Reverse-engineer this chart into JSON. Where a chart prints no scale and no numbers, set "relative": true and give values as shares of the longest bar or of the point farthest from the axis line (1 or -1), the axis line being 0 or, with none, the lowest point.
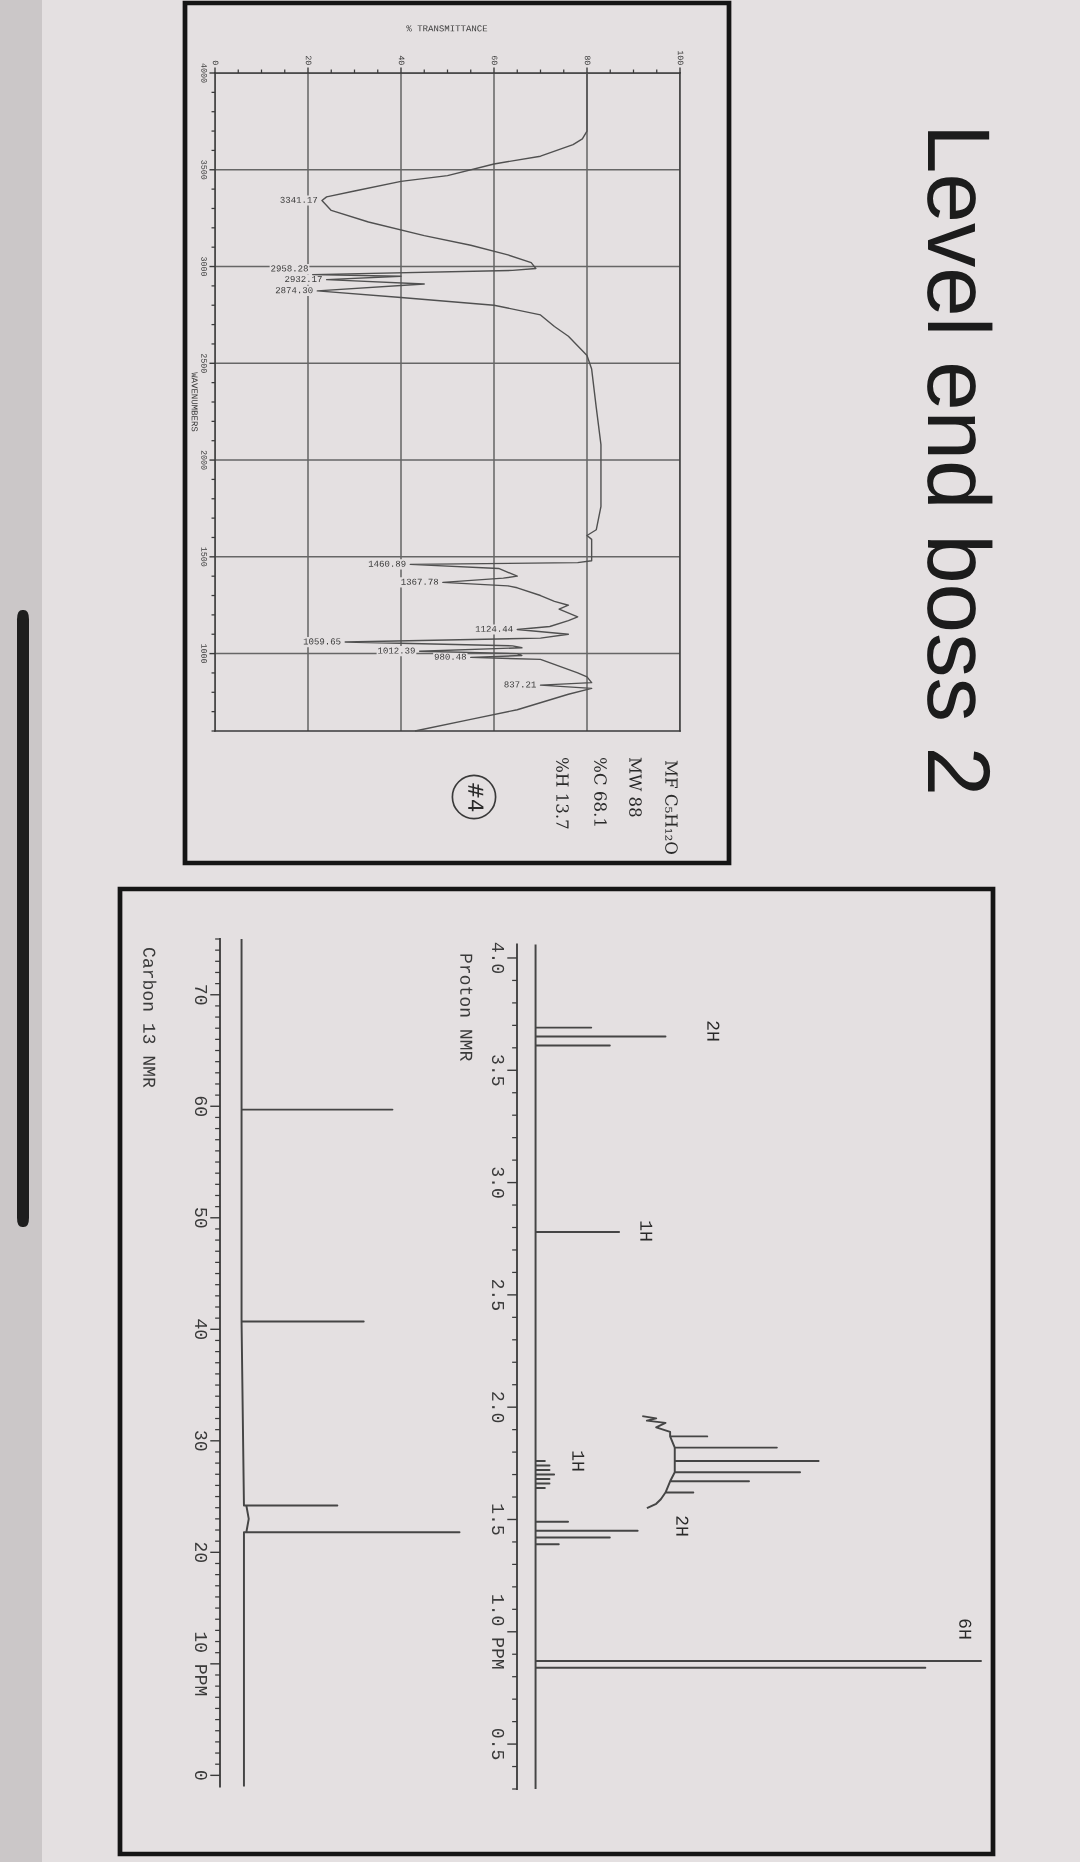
{
  "chart_data": [
    {
      "type": "line",
      "orientation": "horizontal",
      "xlabel": "% TRANSMITTANCE",
      "ylabel": "WAVENUMBERS",
      "xlim": [
        0,
        100
      ],
      "xticks": [
        0,
        {
          "value": 5,
          "label": null
        },
        {
          "value": 10,
          "label": null
        },
        {
          "value": 15,
          "label": null
        },
        20,
        {
          "value": 25,
          "label": null
        },
        {
          "value": 30,
          "label": null
        },
        {
          "value": 35,
          "label": null
        },
        40,
        {
          "value": 45,
          "label": null
        },
        {
          "value": 50,
          "label": null
        },
        {
          "value": 55,
          "label": null
        },
        60,
        {
          "value": 65,
          "label": null
        },
        {
          "value": 70,
          "label": null
        },
        {
          "value": 75,
          "label": null
        },
        80,
        {
          "value": 85,
          "label": null
        },
        {
          "value": 90,
          "label": null
        },
        {
          "value": 95,
          "label": null
        },
        100
      ],
      "ylim": [
        600,
        4000
      ],
      "yticks": [
        4000,
        {
          "value": 3900,
          "label": null
        },
        {
          "value": 3800,
          "label": null
        },
        {
          "value": 3700,
          "label": null
        },
        {
          "value": 3600,
          "label": null
        },
        3500,
        {
          "value": 3400,
          "label": null
        },
        {
          "value": 3300,
          "label": null
        },
        {
          "value": 3200,
          "label": null
        },
        {
          "value": 3100,
          "label": null
        },
        3000,
        {
          "value": 2900,
          "label": null
        },
        {
          "value": 2800,
          "label": null
        },
        {
          "value": 2700,
          "label": null
        },
        {
          "value": 2600,
          "label": null
        },
        2500,
        {
          "value": 2400,
          "label": null
        },
        {
          "value": 2300,
          "label": null
        },
        {
          "value": 2200,
          "label": null
        },
        {
          "value": 2100,
          "label": null
        },
        2000,
        {
          "value": 1900,
          "label": null
        },
        {
          "value": 1800,
          "label": null
        },
        {
          "value": 1700,
          "label": null
        },
        {
          "value": 1600,
          "label": null
        },
        1500,
        {
          "value": 1400,
          "label": null
        },
        {
          "value": 1300,
          "label": null
        },
        {
          "value": 1200,
          "label": null
        },
        {
          "value": 1100,
          "label": null
        },
        1000,
        {
          "value": 900,
          "label": null
        },
        {
          "value": 800,
          "label": null
        },
        {
          "value": 700,
          "label": null
        },
        {
          "value": 600,
          "label": null
        }
      ],
      "grid": true,
      "series": [
        {
          "color": "#505050",
          "x": [
            4000,
            3800,
            3700,
            3660,
            3630,
            3570,
            3530,
            3470,
            3440,
            3390,
            3360,
            3341.17,
            3290,
            3230,
            3160,
            3110,
            3060,
            3020,
            2990,
            2980,
            2958.28,
            2950,
            2932.17,
            2910,
            2874.3,
            2840,
            2800,
            2750,
            2690,
            2640,
            2540,
            2470,
            2270,
            2080,
            1910,
            1760,
            1640,
            1610,
            1590,
            1560,
            1480,
            1470,
            1460.89,
            1440,
            1400,
            1390,
            1367.78,
            1350,
            1340,
            1300,
            1270,
            1250,
            1230,
            1190,
            1170,
            1140,
            1124.44,
            1100,
            1080,
            1059.65,
            1040,
            1030,
            1012.39,
            1000,
            990,
            980.48,
            970,
            900,
            880,
            850,
            837.21,
            820,
            790,
            710,
            660,
            600
          ],
          "values": [
            80,
            80,
            80,
            79,
            77,
            70,
            60,
            50,
            40,
            30,
            24,
            23,
            25,
            33,
            45,
            55,
            63,
            68,
            69,
            64,
            21,
            40,
            24,
            45,
            22,
            40,
            60,
            70,
            73,
            76,
            80,
            81,
            82,
            83,
            83,
            83,
            82,
            80,
            81,
            81,
            81,
            78,
            42,
            61,
            65,
            62,
            49,
            63,
            65,
            70,
            73,
            76,
            74,
            78,
            76,
            72,
            65,
            76,
            70,
            28,
            64,
            66,
            44,
            65,
            66,
            55,
            70,
            78,
            80,
            81,
            70,
            81,
            76,
            65,
            55,
            43
          ]
        }
      ],
      "annotations": [
        {
          "text": "3341.17",
          "x": 23,
          "y": 3341.17
        },
        {
          "text": "2958.28",
          "x": 21,
          "y": 2958.28
        },
        {
          "text": "2932.17",
          "x": 24,
          "y": 2932.17
        },
        {
          "text": "2874.30",
          "x": 22,
          "y": 2874.3
        },
        {
          "text": "1460.89",
          "x": 42,
          "y": 1460.89
        },
        {
          "text": "1367.78",
          "x": 49,
          "y": 1367.78
        },
        {
          "text": "1124.44",
          "x": 65,
          "y": 1124.44
        },
        {
          "text": "1059.65",
          "x": 28,
          "y": 1059.65
        },
        {
          "text": "1012.39",
          "x": 44,
          "y": 1012.39
        },
        {
          "text": "980.48",
          "x": 55,
          "y": 980.48
        },
        {
          "text": "837.21",
          "x": 70,
          "y": 837.21
        },
        "MF C₅H₁₂O",
        "MW 88",
        "%C 68.1",
        "%H 13.7",
        "#4"
      ]
    },
    {
      "type": "line",
      "orientation": "horizontal",
      "title": "Level end boss 2",
      "ylabel": "Proton NMR",
      "ylim": [
        0.3,
        4.06
      ],
      "yticks": [
        {
          "value": 4,
          "label": "4.0"
        },
        {
          "value": 3.9,
          "label": null
        },
        {
          "value": 3.8,
          "label": null
        },
        {
          "value": 3.7,
          "label": null
        },
        {
          "value": 3.6,
          "label": null
        },
        3.5,
        {
          "value": 3.4,
          "label": null
        },
        {
          "value": 3.3,
          "label": null
        },
        {
          "value": 3.2,
          "label": null
        },
        {
          "value": 3.1,
          "label": null
        },
        {
          "value": 3,
          "label": "3.0"
        },
        {
          "value": 2.9,
          "label": null
        },
        {
          "value": 2.8,
          "label": null
        },
        {
          "value": 2.7,
          "label": null
        },
        {
          "value": 2.6,
          "label": null
        },
        2.5,
        {
          "value": 2.4,
          "label": null
        },
        {
          "value": 2.3,
          "label": null
        },
        {
          "value": 2.2,
          "label": null
        },
        {
          "value": 2.1,
          "label": null
        },
        {
          "value": 2,
          "label": "2.0"
        },
        {
          "value": 1.9,
          "label": null
        },
        {
          "value": 1.8,
          "label": null
        },
        {
          "value": 1.7,
          "label": null
        },
        {
          "value": 1.6,
          "label": null
        },
        1.5,
        {
          "value": 1.4,
          "label": null
        },
        {
          "value": 1.3,
          "label": null
        },
        {
          "value": 1.2,
          "label": null
        },
        {
          "value": 1.1,
          "label": null
        },
        {
          "value": 1,
          "label": "1.0 PPM"
        },
        {
          "value": 0.9,
          "label": null
        },
        {
          "value": 0.8,
          "label": null
        },
        {
          "value": 0.7,
          "label": null
        },
        {
          "value": 0.6,
          "label": null
        },
        0.5,
        {
          "value": 0.4,
          "label": null
        },
        {
          "value": 0.3,
          "label": null
        }
      ],
      "relative": true,
      "series": [
        {
          "color": "#454545",
          "x": [
            4.06,
            3.69,
            3.69,
            3.69,
            3.65,
            3.65,
            3.65,
            3.61,
            3.61,
            3.61,
            2.78,
            2.78,
            2.78,
            1.76,
            1.76,
            1.76,
            1.74,
            1.74,
            1.74,
            1.72,
            1.72,
            1.72,
            1.7,
            1.7,
            1.7,
            1.68,
            1.68,
            1.68,
            1.66,
            1.66,
            1.66,
            1.64,
            1.64,
            1.64,
            1.49,
            1.49,
            1.49,
            1.45,
            1.45,
            1.45,
            1.42,
            1.42,
            1.42,
            1.39,
            1.39,
            1.39,
            0.87,
            0.87,
            0.87,
            0.84,
            0.84,
            0.84,
            0.3
          ],
          "values": [
            0.04,
            0.04,
            0.16,
            0.04,
            0.04,
            0.32,
            0.04,
            0.04,
            0.2,
            0.04,
            0.04,
            0.22,
            0.04,
            0.04,
            0.06,
            0.04,
            0.04,
            0.07,
            0.04,
            0.04,
            0.07,
            0.04,
            0.04,
            0.08,
            0.04,
            0.04,
            0.07,
            0.04,
            0.04,
            0.07,
            0.04,
            0.04,
            0.06,
            0.04,
            0.04,
            0.11,
            0.04,
            0.04,
            0.26,
            0.04,
            0.04,
            0.2,
            0.04,
            0.04,
            0.09,
            0.04,
            0.04,
            1,
            0.04,
            0.04,
            0.88,
            0.04,
            0.04
          ]
        },
        {
          "color": "#454545",
          "x": [
            1.96,
            1.95,
            1.94,
            1.93,
            1.91,
            1.89,
            1.87,
            1.87,
            1.87,
            1.82,
            1.82,
            1.82,
            1.76,
            1.76,
            1.76,
            1.71,
            1.71,
            1.71,
            1.67,
            1.67,
            1.67,
            1.62,
            1.62,
            1.62,
            1.59,
            1.57,
            1.55
          ],
          "values": [
            0.27,
            0.3,
            0.28,
            0.32,
            0.3,
            0.33,
            0.33,
            0.41,
            0.33,
            0.34,
            0.56,
            0.34,
            0.34,
            0.65,
            0.34,
            0.34,
            0.61,
            0.34,
            0.33,
            0.5,
            0.33,
            0.32,
            0.38,
            0.32,
            0.31,
            0.3,
            0.28
          ]
        }
      ],
      "annotations": [
        "2H",
        "1H",
        "1H",
        "2H",
        "6H"
      ]
    },
    {
      "type": "line",
      "orientation": "horizontal",
      "ylabel": "Carbon 13 NMR",
      "ylim": [
        -1,
        75
      ],
      "yticks": [
        {
          "value": 75,
          "label": null
        },
        {
          "value": 74,
          "label": null
        },
        {
          "value": 73,
          "label": null
        },
        {
          "value": 72,
          "label": null
        },
        {
          "value": 71,
          "label": null
        },
        70,
        {
          "value": 69,
          "label": null
        },
        {
          "value": 68,
          "label": null
        },
        {
          "value": 67,
          "label": null
        },
        {
          "value": 66,
          "label": null
        },
        {
          "value": 65,
          "label": null
        },
        {
          "value": 64,
          "label": null
        },
        {
          "value": 63,
          "label": null
        },
        {
          "value": 62,
          "label": null
        },
        {
          "value": 61,
          "label": null
        },
        60,
        {
          "value": 59,
          "label": null
        },
        {
          "value": 58,
          "label": null
        },
        {
          "value": 57,
          "label": null
        },
        {
          "value": 56,
          "label": null
        },
        {
          "value": 55,
          "label": null
        },
        {
          "value": 54,
          "label": null
        },
        {
          "value": 53,
          "label": null
        },
        {
          "value": 52,
          "label": null
        },
        {
          "value": 51,
          "label": null
        },
        50,
        {
          "value": 49,
          "label": null
        },
        {
          "value": 48,
          "label": null
        },
        {
          "value": 47,
          "label": null
        },
        {
          "value": 46,
          "label": null
        },
        {
          "value": 45,
          "label": null
        },
        {
          "value": 44,
          "label": null
        },
        {
          "value": 43,
          "label": null
        },
        {
          "value": 42,
          "label": null
        },
        {
          "value": 41,
          "label": null
        },
        40,
        {
          "value": 39,
          "label": null
        },
        {
          "value": 38,
          "label": null
        },
        {
          "value": 37,
          "label": null
        },
        {
          "value": 36,
          "label": null
        },
        {
          "value": 35,
          "label": null
        },
        {
          "value": 34,
          "label": null
        },
        {
          "value": 33,
          "label": null
        },
        {
          "value": 32,
          "label": null
        },
        {
          "value": 31,
          "label": null
        },
        30,
        {
          "value": 29,
          "label": null
        },
        {
          "value": 28,
          "label": null
        },
        {
          "value": 27,
          "label": null
        },
        {
          "value": 26,
          "label": null
        },
        {
          "value": 25,
          "label": null
        },
        {
          "value": 24,
          "label": null
        },
        {
          "value": 23,
          "label": null
        },
        {
          "value": 22,
          "label": null
        },
        {
          "value": 21,
          "label": null
        },
        20,
        {
          "value": 19,
          "label": null
        },
        {
          "value": 18,
          "label": null
        },
        {
          "value": 17,
          "label": null
        },
        {
          "value": 16,
          "label": null
        },
        {
          "value": 15,
          "label": null
        },
        {
          "value": 14,
          "label": null
        },
        {
          "value": 13,
          "label": null
        },
        {
          "value": 12,
          "label": null
        },
        {
          "value": 11,
          "label": null
        },
        {
          "value": 10,
          "label": "10 PPM"
        },
        {
          "value": 9,
          "label": null
        },
        {
          "value": 8,
          "label": null
        },
        {
          "value": 7,
          "label": null
        },
        {
          "value": 6,
          "label": null
        },
        {
          "value": 5,
          "label": null
        },
        {
          "value": 4,
          "label": null
        },
        {
          "value": 3,
          "label": null
        },
        {
          "value": 2,
          "label": null
        },
        {
          "value": 1,
          "label": null
        },
        0
      ],
      "relative": true,
      "series": [
        {
          "color": "#454545",
          "x": [
            75,
            59.7,
            59.7,
            59.7,
            40.7,
            40.7,
            40.7,
            24.2,
            24.2,
            24.2,
            23,
            21.8,
            21.8,
            21.8,
            -1
          ],
          "values": [
            0.09,
            0.09,
            0.72,
            0.09,
            0.09,
            0.6,
            0.09,
            0.1,
            0.49,
            0.11,
            0.12,
            0.11,
            1,
            0.1,
            0.1
          ]
        }
      ]
    }
  ]
}
